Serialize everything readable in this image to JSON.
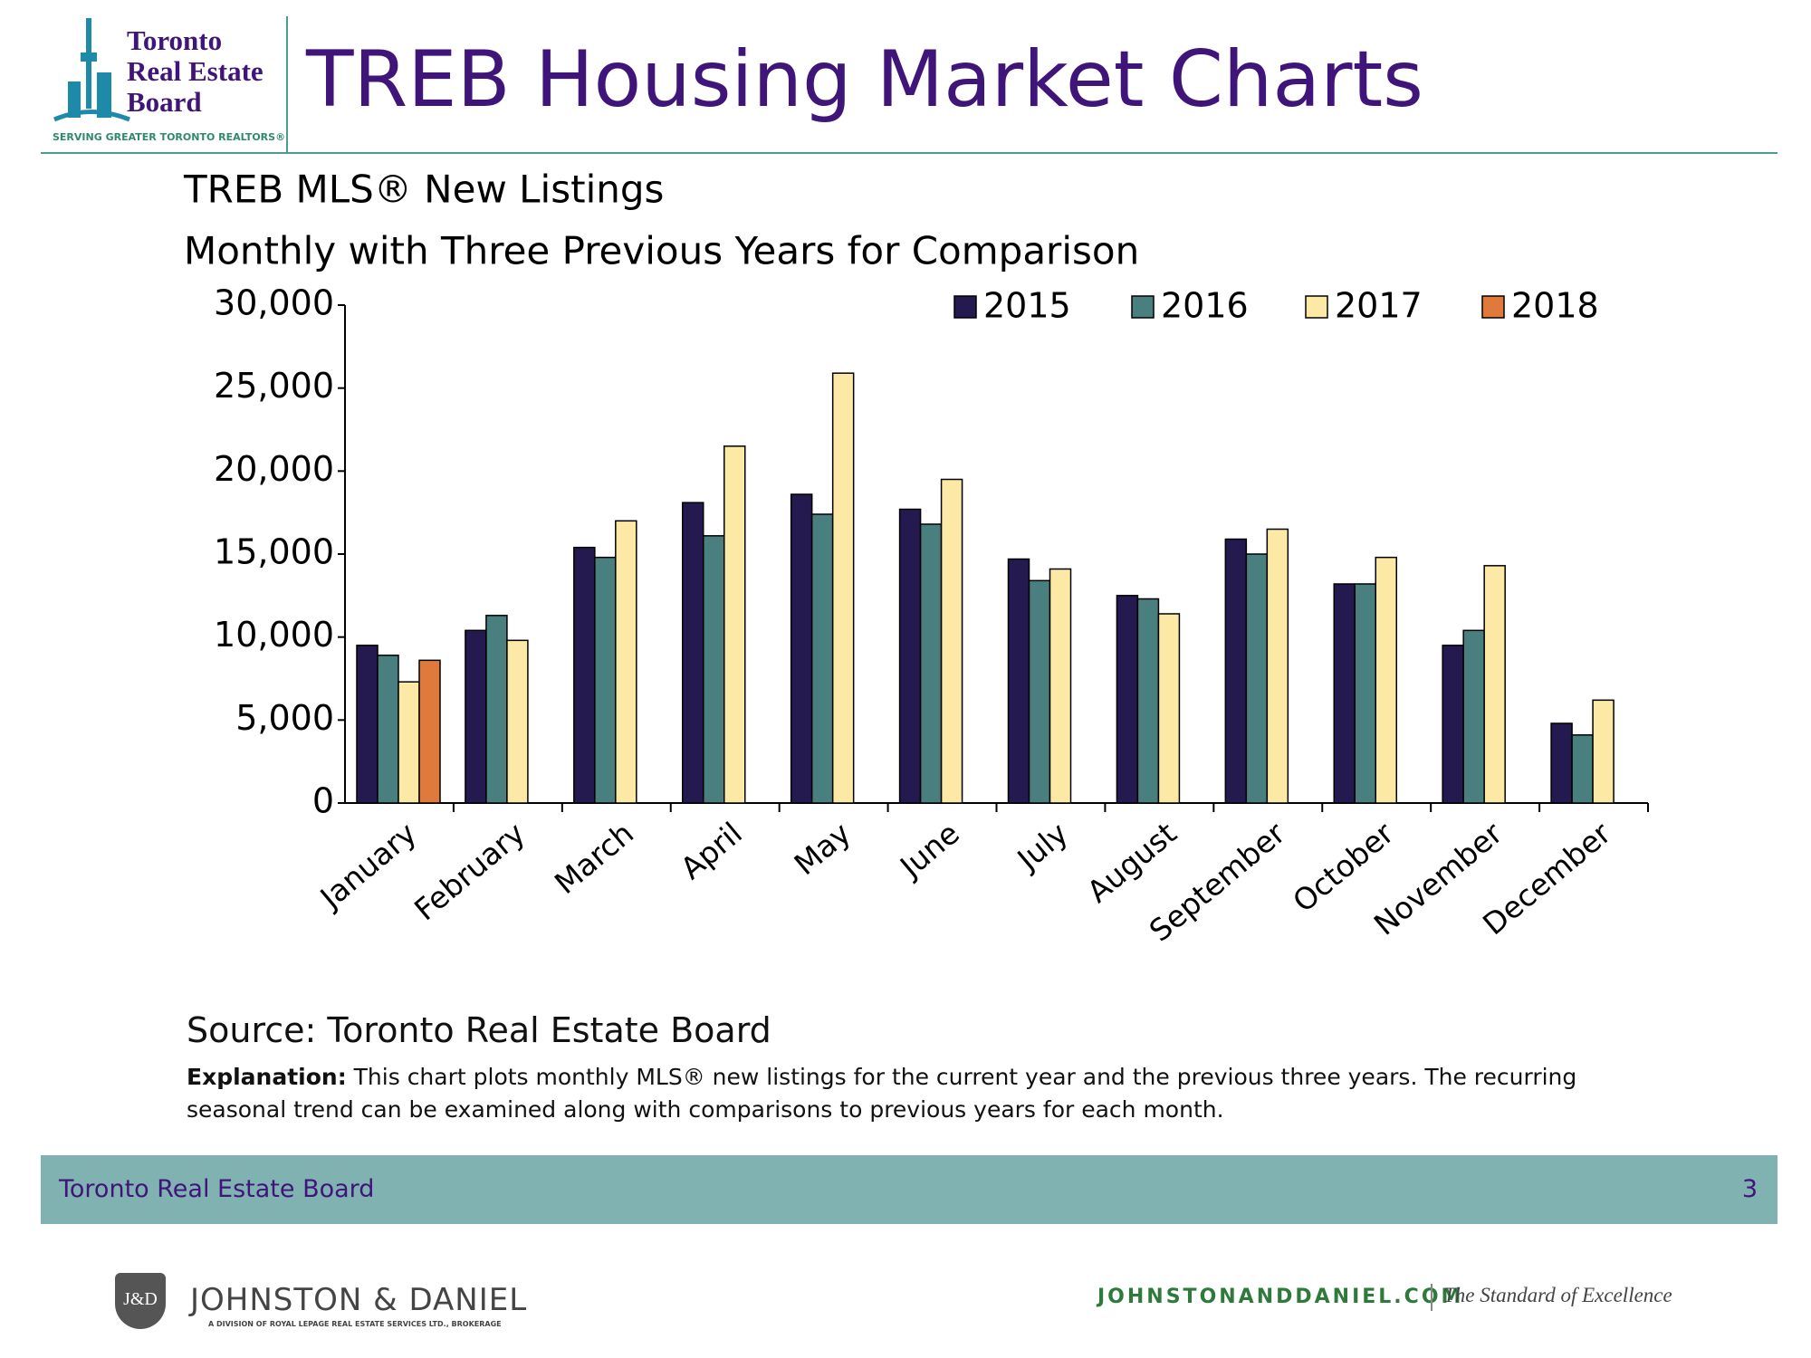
{
  "header": {
    "logo_lines": [
      "Toronto",
      "Real Estate",
      "Board"
    ],
    "logo_tagline": "SERVING GREATER TORONTO REALTORS®",
    "title": "TREB Housing Market Charts"
  },
  "chart_data": {
    "type": "bar",
    "title": "TREB MLS® New Listings",
    "subtitle": "Monthly with Three Previous Years for Comparison",
    "categories": [
      "January",
      "February",
      "March",
      "April",
      "May",
      "June",
      "July",
      "August",
      "September",
      "October",
      "November",
      "December"
    ],
    "series": [
      {
        "name": "2015",
        "color": "#241a4f",
        "values": [
          9500,
          10400,
          15400,
          18100,
          18600,
          17700,
          14700,
          12500,
          15900,
          13200,
          9500,
          4800
        ]
      },
      {
        "name": "2016",
        "color": "#4a7f7f",
        "values": [
          8900,
          11300,
          14800,
          16100,
          17400,
          16800,
          13400,
          12300,
          15000,
          13200,
          10400,
          4100
        ]
      },
      {
        "name": "2017",
        "color": "#fde9a6",
        "values": [
          7300,
          9800,
          17000,
          21500,
          25900,
          19500,
          14100,
          11400,
          16500,
          14800,
          14300,
          6200
        ]
      },
      {
        "name": "2018",
        "color": "#e07a3c",
        "values": [
          8600,
          null,
          null,
          null,
          null,
          null,
          null,
          null,
          null,
          null,
          null,
          null
        ]
      }
    ],
    "ylim": [
      0,
      30000
    ],
    "yticks": [
      0,
      {
        "value": 5000,
        "label": "5,000"
      },
      {
        "value": 10000,
        "label": "10,000"
      },
      {
        "value": 15000,
        "label": "15,000"
      },
      {
        "value": 20000,
        "label": "20,000"
      },
      {
        "value": 25000,
        "label": "25,000"
      },
      {
        "value": 30000,
        "label": "30,000"
      }
    ],
    "legend": "top-right",
    "grid": false
  },
  "source": "Source: Toronto Real Estate Board",
  "explanation_label": "Explanation:",
  "explanation_text": "This chart plots monthly MLS® new listings for the current year and the previous three years. The recurring seasonal trend can be examined along with comparisons to previous years for each month.",
  "footer": {
    "left": "Toronto Real Estate Board",
    "page": "3"
  },
  "branding": {
    "logo_mark": "J&D",
    "name": "JOHNSTON & DANIEL",
    "division": "A DIVISION OF ROYAL LEPAGE REAL ESTATE SERVICES LTD., BROKERAGE",
    "url": "JOHNSTONANDDANIEL.COM",
    "tagline": "The Standard of Excellence"
  }
}
